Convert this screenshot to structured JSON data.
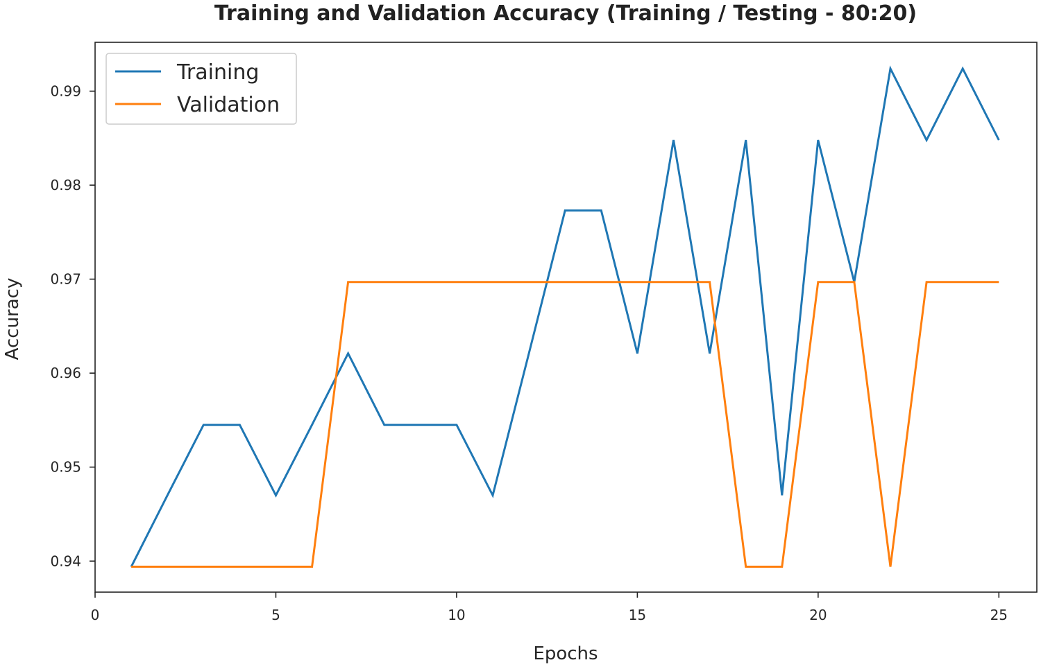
{
  "chart_data": {
    "type": "line",
    "title": "Training and Validation Accuracy (Training / Testing - 80:20)",
    "xlabel": "Epochs",
    "ylabel": "Accuracy",
    "xlim": [
      0,
      26.05
    ],
    "ylim": [
      0.9367,
      0.9952
    ],
    "x_ticks": [
      0,
      5,
      10,
      15,
      20,
      25
    ],
    "y_ticks": [
      0.94,
      0.95,
      0.96,
      0.97,
      0.98,
      0.99
    ],
    "y_tick_labels": [
      "0.94",
      "0.95",
      "0.96",
      "0.97",
      "0.98",
      "0.99"
    ],
    "grid": false,
    "legend_position": "top-left",
    "x": [
      1,
      2,
      3,
      4,
      5,
      6,
      7,
      8,
      9,
      10,
      11,
      12,
      13,
      14,
      15,
      16,
      17,
      18,
      19,
      20,
      21,
      22,
      23,
      24,
      25
    ],
    "series": [
      {
        "name": "Training",
        "color": "#1f77b4",
        "values": [
          0.9394,
          0.947,
          0.9545,
          0.9545,
          0.947,
          0.9545,
          0.9621,
          0.9545,
          0.9545,
          0.9545,
          0.947,
          0.9621,
          0.9773,
          0.9773,
          0.9621,
          0.9848,
          0.9621,
          0.9848,
          0.947,
          0.9848,
          0.9697,
          0.9924,
          0.9848,
          0.9924,
          0.9848
        ]
      },
      {
        "name": "Validation",
        "color": "#ff7f0e",
        "values": [
          0.9394,
          0.9394,
          0.9394,
          0.9394,
          0.9394,
          0.9394,
          0.9697,
          0.9697,
          0.9697,
          0.9697,
          0.9697,
          0.9697,
          0.9697,
          0.9697,
          0.9697,
          0.9697,
          0.9697,
          0.9394,
          0.9394,
          0.9697,
          0.9697,
          0.9394,
          0.9697,
          0.9697,
          0.9697
        ]
      }
    ]
  }
}
